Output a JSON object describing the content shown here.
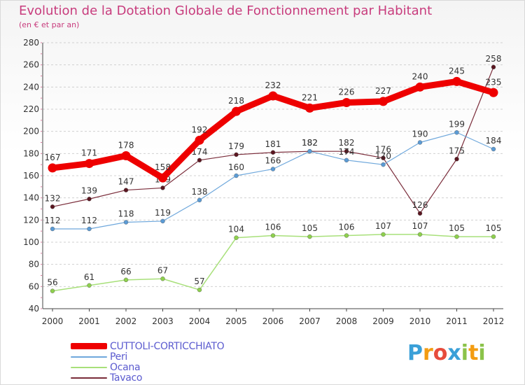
{
  "header": {
    "title": "Evolution de la Dotation Globale de Fonctionnement par Habitant",
    "subtitle": "(en € et par an)"
  },
  "logo": {
    "text": "Proxiti",
    "letters": [
      "P",
      "r",
      "o",
      "x",
      "i",
      "t",
      "i"
    ],
    "colors": [
      "#3aa0d8",
      "#f39c12",
      "#e74c3c",
      "#3aa0d8",
      "#8bc34a",
      "#f39c12",
      "#8bc34a"
    ]
  },
  "chart_data": {
    "type": "line",
    "title": "Evolution de la Dotation Globale de Fonctionnement par Habitant",
    "subtitle": "(en € et par an)",
    "xlabel": "",
    "ylabel": "",
    "x": [
      "2000",
      "2001",
      "2002",
      "2003",
      "2004",
      "2005",
      "2006",
      "2007",
      "2008",
      "2009",
      "2010",
      "2011",
      "2012"
    ],
    "ylim": [
      40,
      280
    ],
    "yticks": [
      40,
      60,
      80,
      100,
      120,
      140,
      160,
      180,
      200,
      220,
      240,
      260,
      280
    ],
    "grid": true,
    "legend_position": "bottom-left",
    "series": [
      {
        "name": "CUTTOLI-CORTICCHIATO",
        "color": "#ee0000",
        "width": 9,
        "values": [
          167,
          171,
          178,
          158,
          192,
          218,
          232,
          221,
          226,
          227,
          240,
          245,
          235
        ]
      },
      {
        "name": "Peri",
        "color": "#6fa8dc",
        "width": 1.2,
        "values": [
          112,
          112,
          118,
          119,
          138,
          160,
          166,
          182,
          174,
          170,
          190,
          199,
          184
        ]
      },
      {
        "name": "Ocana",
        "color": "#a8e07a",
        "width": 1.5,
        "values": [
          56,
          61,
          66,
          67,
          57,
          104,
          106,
          105,
          106,
          107,
          107,
          105,
          105
        ]
      },
      {
        "name": "Tavaco",
        "color": "#7a2c3a",
        "width": 1.2,
        "values": [
          132,
          139,
          147,
          149,
          174,
          179,
          181,
          182,
          182,
          176,
          126,
          175,
          258
        ]
      }
    ],
    "marker_colors": {
      "CUTTOLI-CORTICCHIATO": "#ee0000",
      "Peri": "#5b9bd5",
      "Ocana": "#8ed04d",
      "Tavaco": "#5a1620"
    }
  }
}
